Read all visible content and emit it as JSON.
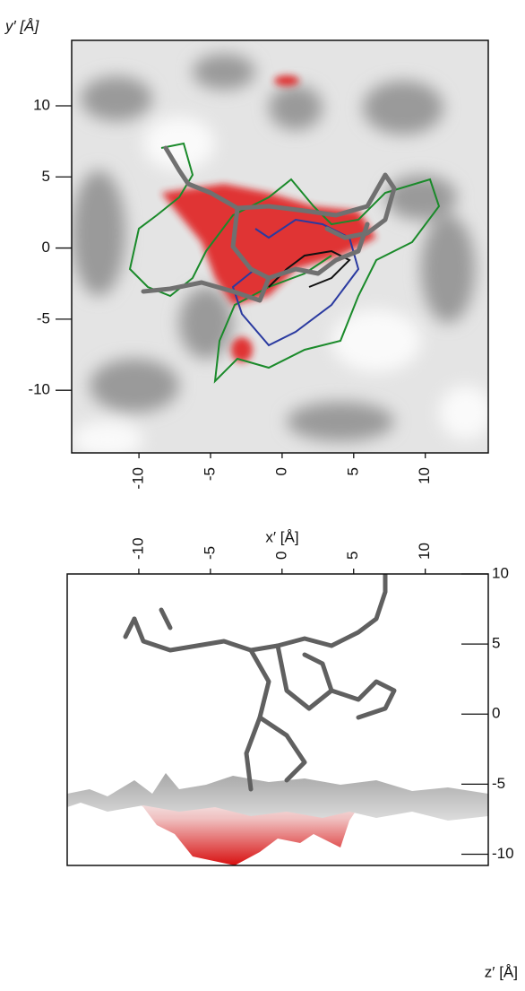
{
  "chart_data": [
    {
      "type": "image",
      "ylabel": "y′ [Å]",
      "xlabel": "x′ [Å]",
      "xlim": [
        -14.7,
        14.4
      ],
      "xticks": [
        -10,
        -5,
        0,
        5,
        10
      ],
      "ylim": [
        -14.4,
        14.6
      ],
      "yticks": [
        -10,
        -5,
        0,
        5,
        10
      ]
    },
    {
      "type": "image",
      "ylabel": "z′ [Å]",
      "xlim": [
        -15,
        14.4
      ],
      "xticks": [
        -10,
        -5,
        0,
        5,
        10
      ],
      "ylim": [
        -10.8,
        10
      ],
      "yticks": [
        -10,
        -5,
        0,
        5,
        10
      ]
    }
  ]
}
